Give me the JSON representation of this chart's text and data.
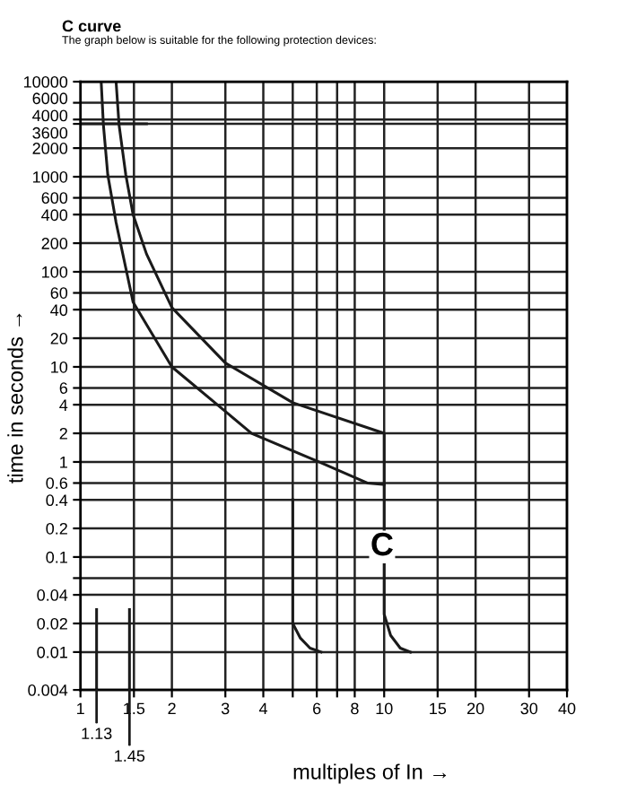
{
  "chart_data": {
    "type": "line",
    "title": "C curve",
    "subtitle": "The graph below is suitable for the following protection devices:",
    "xlabel": "multiples of In →",
    "ylabel": "time in seconds →",
    "log": "xy",
    "grid": true,
    "marker": "none",
    "line_style": "solid",
    "xlim": [
      1,
      40
    ],
    "xticks": [
      1,
      1.5,
      2,
      3,
      4,
      {
        "value": 5,
        "label": null
      },
      6,
      {
        "value": 7,
        "label": null
      },
      8,
      10,
      15,
      20,
      30,
      40
    ],
    "ylim": [
      0.004,
      10000
    ],
    "yticks": [
      0.004,
      0.01,
      0.02,
      0.04,
      {
        "value": 0.06,
        "label": null
      },
      0.1,
      0.2,
      0.4,
      0.6,
      1,
      2,
      4,
      6,
      10,
      20,
      40,
      60,
      100,
      200,
      400,
      600,
      1000,
      2000,
      3600,
      4000,
      6000,
      10000
    ],
    "series": [
      {
        "color": "#1a1a1a",
        "x": [
          1.31,
          1.34,
          1.41,
          1.49,
          1.65,
          2.0,
          3,
          5,
          10,
          10,
          10.5,
          11.3,
          12.2
        ],
        "values": [
          10000,
          3500,
          1050,
          400,
          154,
          42,
          11,
          4.2,
          2,
          0.025,
          0.015,
          0.011,
          0.01
        ]
      },
      {
        "color": "#1a1a1a",
        "x": [
          1.17,
          1.19,
          1.23,
          1.31,
          1.49,
          2,
          3,
          3.66,
          6.1,
          8.8,
          10
        ],
        "values": [
          10000,
          3500,
          1050,
          330,
          48,
          10,
          3.4,
          2,
          1,
          0.6,
          0.58
        ]
      },
      {
        "color": "#1a1a1a",
        "x": [
          5,
          5,
          5.3,
          5.7,
          6.2
        ],
        "values": [
          0.4,
          0.02,
          0.014,
          0.011,
          0.01
        ]
      },
      {
        "color": "#1a1a1a",
        "x": [
          1,
          1.65
        ],
        "values": [
          3600,
          3600
        ]
      },
      {
        "color": "#1a1a1a",
        "x": [
          1.13,
          1.13
        ],
        "values": [
          0.004,
          0.028
        ]
      },
      {
        "color": "#1a1a1a",
        "x": [
          1.45,
          1.45
        ],
        "values": [
          0.004,
          0.028
        ]
      }
    ],
    "annotations": [
      "C",
      {
        "text": "1.13",
        "x": 1.13,
        "y": 0.004
      },
      {
        "text": "1.45",
        "x": 1.45,
        "y": 0.004
      }
    ]
  }
}
